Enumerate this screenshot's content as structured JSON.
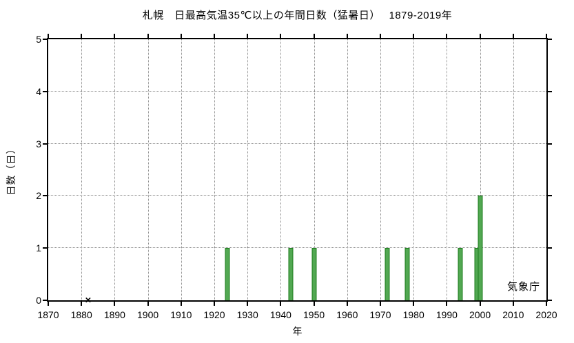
{
  "title": "札幌　日最高気温35℃以上の年間日数（猛暑日）　 1879-2019年",
  "credit": "気象庁",
  "chart_data": {
    "type": "bar",
    "title": "札幌　日最高気温35℃以上の年間日数（猛暑日）　 1879-2019年",
    "xlabel": "年",
    "ylabel": "日数（日）",
    "xlim": [
      1870,
      2020
    ],
    "ylim": [
      0,
      5
    ],
    "x_ticks": [
      1870,
      1880,
      1890,
      1900,
      1910,
      1920,
      1930,
      1940,
      1950,
      1960,
      1970,
      1980,
      1990,
      2000,
      2010,
      2020
    ],
    "y_ticks": [
      0,
      1,
      2,
      3,
      4,
      5
    ],
    "grid": "dotted",
    "legend": "none",
    "bars": [
      {
        "year": 1924,
        "days": 1
      },
      {
        "year": 1943,
        "days": 1
      },
      {
        "year": 1950,
        "days": 1
      },
      {
        "year": 1972,
        "days": 1
      },
      {
        "year": 1978,
        "days": 1
      },
      {
        "year": 1994,
        "days": 1
      },
      {
        "year": 1999,
        "days": 1
      },
      {
        "year": 2000,
        "days": 2
      }
    ],
    "missing_marker": {
      "year": 1882,
      "symbol": "×"
    },
    "colors": {
      "bar_fill": "#52a852",
      "bar_border": "#1e7d1e",
      "grid": "#8a8a8a",
      "axis": "#000000",
      "marker": "#000000"
    }
  }
}
